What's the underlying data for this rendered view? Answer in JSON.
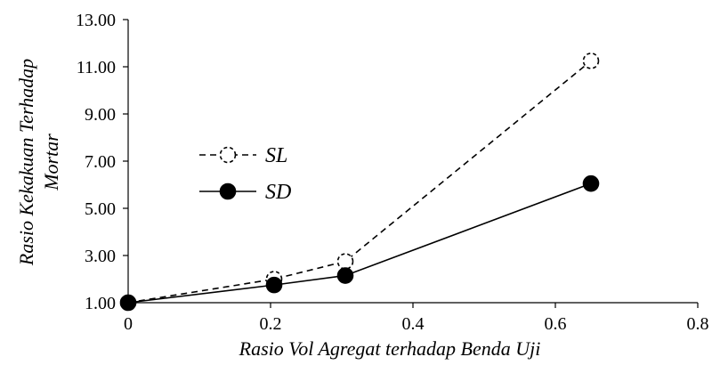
{
  "chart_data": {
    "type": "line",
    "xlabel": "Rasio Vol Agregat terhadap Benda Uji",
    "ylabel_lines": [
      "Rasio Kekakuan Terhadap",
      "Mortar"
    ],
    "xlim": [
      0,
      0.8
    ],
    "ylim": [
      1.0,
      13.0
    ],
    "x_ticks": [
      0,
      0.2,
      0.4,
      0.6,
      0.8
    ],
    "x_tick_labels": [
      "0",
      "0.2",
      "0.4",
      "0.6",
      "0.8"
    ],
    "y_ticks": [
      1,
      3,
      5,
      7,
      9,
      11,
      13
    ],
    "y_tick_labels": [
      "1.00",
      "3.00",
      "5.00",
      "7.00",
      "9.00",
      "11.00",
      "13.00"
    ],
    "grid": false,
    "legend_position": "center-left",
    "series": [
      {
        "name": "SL",
        "style": "dashed-open",
        "x": [
          0,
          0.205,
          0.305,
          0.65
        ],
        "y": [
          1.0,
          2.0,
          2.75,
          11.25
        ]
      },
      {
        "name": "SD",
        "style": "solid-filled",
        "x": [
          0,
          0.205,
          0.305,
          0.65
        ],
        "y": [
          1.0,
          1.75,
          2.15,
          6.05
        ]
      }
    ]
  }
}
